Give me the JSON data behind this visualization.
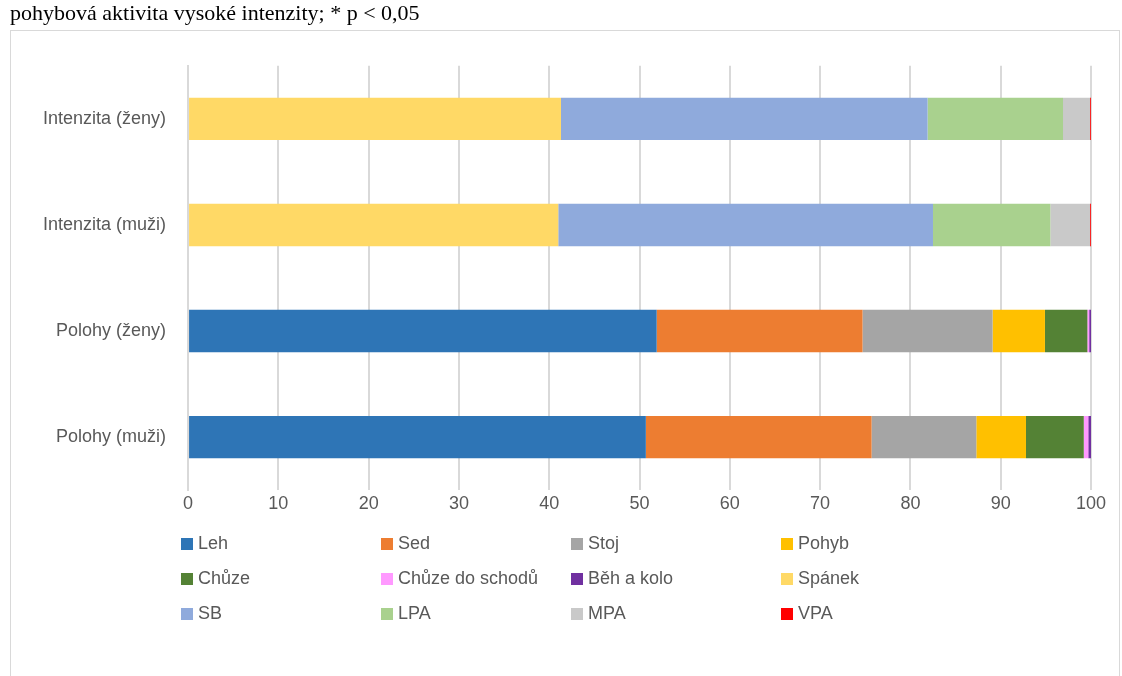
{
  "chart_data": {
    "type": "bar",
    "orientation": "horizontal",
    "stacked": true,
    "annotations": [
      "pohybová aktivita vysoké intenzity; * p < 0,05"
    ],
    "categories": [
      "Intenzita (ženy)",
      "Intenzita (muži)",
      "Polohy (ženy)",
      "Polohy (muži)"
    ],
    "xlim": [
      0,
      100
    ],
    "xticks": [
      0,
      10,
      20,
      30,
      40,
      50,
      60,
      70,
      80,
      90,
      100
    ],
    "grid": "x",
    "legend": "bottom",
    "series": [
      {
        "name": "Leh",
        "color": "#2e75b6",
        "values": [
          null,
          null,
          51.9,
          50.7
        ]
      },
      {
        "name": "Sed",
        "color": "#ed7d31",
        "values": [
          null,
          null,
          22.8,
          25.0
        ]
      },
      {
        "name": "Stoj",
        "color": "#a5a5a5",
        "values": [
          null,
          null,
          14.4,
          11.6
        ]
      },
      {
        "name": "Pohyb",
        "color": "#ffc000",
        "values": [
          null,
          null,
          5.8,
          5.5
        ]
      },
      {
        "name": "Chůze",
        "color": "#548235",
        "values": [
          null,
          null,
          4.7,
          6.4
        ]
      },
      {
        "name": "Chůze do schodů",
        "color": "#ff99ff",
        "values": [
          null,
          null,
          0.2,
          0.5
        ]
      },
      {
        "name": "Běh a kolo",
        "color": "#7030a0",
        "values": [
          null,
          null,
          0.2,
          0.3
        ]
      },
      {
        "name": "Spánek",
        "color": "#ffd966",
        "values": [
          41.3,
          41.0,
          null,
          null
        ]
      },
      {
        "name": "SB",
        "color": "#8faadc",
        "values": [
          40.6,
          41.5,
          null,
          null
        ]
      },
      {
        "name": "LPA",
        "color": "#a9d18e",
        "values": [
          15.0,
          13.0,
          null,
          null
        ]
      },
      {
        "name": "MPA",
        "color": "#c9c9c9",
        "values": [
          3.0,
          4.4,
          null,
          null
        ]
      },
      {
        "name": "VPA",
        "color": "#ff0000",
        "values": [
          0.1,
          0.1,
          null,
          null
        ]
      }
    ]
  }
}
